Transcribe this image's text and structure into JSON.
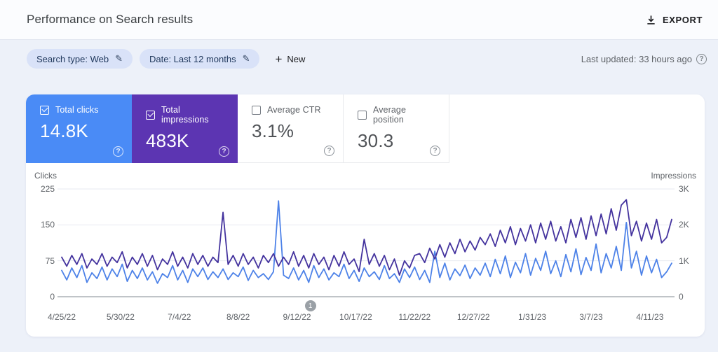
{
  "header": {
    "title": "Performance on Search results",
    "export_label": "EXPORT"
  },
  "filters": {
    "chips": [
      {
        "label": "Search type: Web"
      },
      {
        "label": "Date: Last 12 months"
      }
    ],
    "new_label": "New",
    "last_updated": "Last updated: 33 hours ago"
  },
  "icons": {
    "edit_glyph": "✎",
    "add_glyph": "+",
    "help_glyph": "?"
  },
  "metrics": {
    "cards": [
      {
        "label": "Total clicks",
        "value": "14.8K",
        "checked": true,
        "color": "#4a8bf6"
      },
      {
        "label": "Total impressions",
        "value": "483K",
        "checked": true,
        "color": "#5c35b2"
      },
      {
        "label": "Average CTR",
        "value": "3.1%",
        "checked": false,
        "color": "#ffffff"
      },
      {
        "label": "Average position",
        "value": "30.3",
        "checked": false,
        "color": "#ffffff"
      }
    ]
  },
  "chart_data": {
    "type": "line",
    "grid": true,
    "left_axis": {
      "label": "Clicks",
      "ticks": [
        "225",
        "150",
        "75",
        "0"
      ],
      "max": 225,
      "range": [
        0,
        225
      ]
    },
    "right_axis": {
      "label": "Impressions",
      "ticks": [
        "3K",
        "2K",
        "1K",
        "0"
      ],
      "max": 3,
      "range": [
        0,
        3
      ]
    },
    "x_tick_labels": [
      "4/25/22",
      "5/30/22",
      "7/4/22",
      "8/8/22",
      "9/12/22",
      "10/17/22",
      "11/22/22",
      "12/27/22",
      "1/31/23",
      "3/7/23",
      "4/11/23"
    ],
    "x_tick_interval_days": 35,
    "x_total_days": 363,
    "x_step_days": 3,
    "marker": {
      "label": "1",
      "day": 148
    },
    "colors": {
      "clicks": "#4d82e8",
      "impressions": "#44339e"
    },
    "series": [
      {
        "name": "Clicks",
        "axis": "left",
        "color": "#4d82e8",
        "values": [
          55,
          35,
          60,
          40,
          65,
          30,
          50,
          38,
          62,
          35,
          58,
          42,
          68,
          32,
          55,
          38,
          60,
          35,
          52,
          28,
          48,
          40,
          65,
          35,
          55,
          30,
          58,
          42,
          60,
          36,
          52,
          40,
          58,
          36,
          50,
          42,
          62,
          34,
          55,
          40,
          48,
          36,
          52,
          200,
          45,
          38,
          60,
          35,
          55,
          30,
          65,
          40,
          58,
          35,
          50,
          42,
          68,
          38,
          55,
          32,
          60,
          42,
          52,
          36,
          65,
          38,
          48,
          30,
          58,
          40,
          62,
          36,
          55,
          30,
          95,
          40,
          70,
          35,
          58,
          44,
          66,
          38,
          60,
          45,
          70,
          42,
          78,
          48,
          85,
          40,
          72,
          50,
          90,
          45,
          80,
          55,
          95,
          48,
          75,
          42,
          88,
          52,
          100,
          46,
          82,
          55,
          110,
          50,
          90,
          60,
          105,
          55,
          155,
          60,
          95,
          45,
          85,
          50,
          78,
          40,
          52,
          70
        ]
      },
      {
        "name": "Impressions",
        "axis": "right",
        "color": "#44339e",
        "values": [
          1.1,
          0.85,
          1.15,
          0.9,
          1.2,
          0.8,
          1.05,
          0.9,
          1.2,
          0.85,
          1.1,
          0.95,
          1.25,
          0.8,
          1.1,
          0.9,
          1.2,
          0.85,
          1.15,
          0.75,
          1.05,
          0.9,
          1.25,
          0.85,
          1.1,
          0.8,
          1.2,
          0.9,
          1.15,
          0.85,
          1.1,
          0.95,
          2.35,
          0.9,
          1.15,
          0.85,
          1.2,
          0.9,
          1.1,
          0.8,
          1.15,
          0.95,
          1.2,
          0.85,
          1.1,
          0.9,
          1.25,
          0.85,
          1.15,
          0.8,
          1.2,
          0.9,
          1.1,
          0.75,
          1.15,
          0.85,
          1.25,
          0.9,
          1.05,
          0.7,
          1.6,
          0.9,
          1.2,
          0.85,
          1.15,
          0.75,
          1.05,
          0.6,
          1.0,
          0.8,
          1.15,
          1.2,
          0.95,
          1.35,
          1.05,
          1.45,
          1.1,
          1.5,
          1.2,
          1.6,
          1.25,
          1.55,
          1.3,
          1.65,
          1.45,
          1.75,
          1.4,
          1.85,
          1.5,
          1.95,
          1.45,
          1.9,
          1.55,
          2.0,
          1.5,
          2.05,
          1.6,
          2.1,
          1.55,
          1.95,
          1.5,
          2.15,
          1.65,
          2.2,
          1.6,
          2.25,
          1.7,
          2.3,
          1.75,
          2.45,
          1.85,
          2.55,
          2.7,
          1.7,
          2.1,
          1.55,
          2.05,
          1.6,
          2.15,
          1.5,
          1.65,
          2.15
        ]
      }
    ]
  }
}
